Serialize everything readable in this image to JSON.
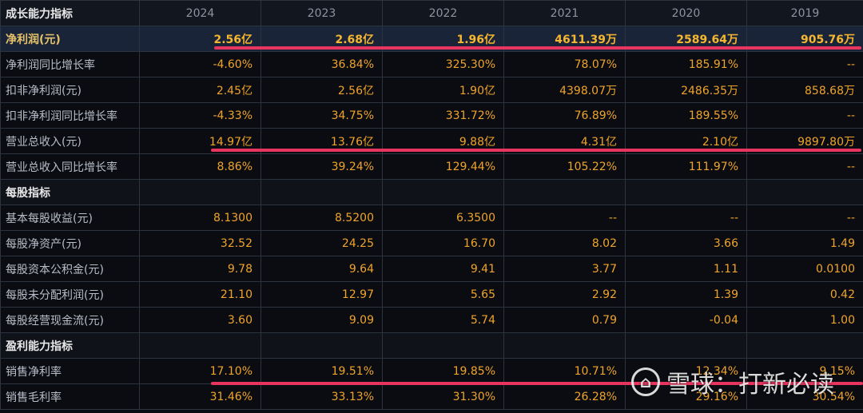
{
  "header": {
    "corner": "成长能力指标",
    "years": [
      "2024",
      "2023",
      "2022",
      "2021",
      "2020",
      "2019"
    ]
  },
  "rows": [
    {
      "label": "净利润(元)",
      "values": [
        "2.56亿",
        "2.68亿",
        "1.96亿",
        "4611.39万",
        "2589.64万",
        "905.76万"
      ]
    },
    {
      "label": "净利润同比增长率",
      "values": [
        "-4.60%",
        "36.84%",
        "325.30%",
        "78.07%",
        "185.91%",
        "--"
      ]
    },
    {
      "label": "扣非净利润(元)",
      "values": [
        "2.45亿",
        "2.56亿",
        "1.90亿",
        "4398.07万",
        "2486.35万",
        "858.68万"
      ]
    },
    {
      "label": "扣非净利润同比增长率",
      "values": [
        "-4.33%",
        "34.75%",
        "331.72%",
        "76.89%",
        "189.55%",
        "--"
      ]
    },
    {
      "label": "营业总收入(元)",
      "values": [
        "14.97亿",
        "13.76亿",
        "9.88亿",
        "4.31亿",
        "2.10亿",
        "9897.80万"
      ]
    },
    {
      "label": "营业总收入同比增长率",
      "values": [
        "8.86%",
        "39.24%",
        "129.44%",
        "105.22%",
        "111.97%",
        "--"
      ]
    },
    {
      "label": "每股指标",
      "values": [
        "",
        "",
        "",
        "",
        "",
        ""
      ]
    },
    {
      "label": "基本每股收益(元)",
      "values": [
        "8.1300",
        "8.5200",
        "6.3500",
        "--",
        "--",
        "--"
      ]
    },
    {
      "label": "每股净资产(元)",
      "values": [
        "32.52",
        "24.25",
        "16.70",
        "8.02",
        "3.66",
        "1.49"
      ]
    },
    {
      "label": "每股资本公积金(元)",
      "values": [
        "9.78",
        "9.64",
        "9.41",
        "3.77",
        "1.11",
        "0.0100"
      ]
    },
    {
      "label": "每股未分配利润(元)",
      "values": [
        "21.10",
        "12.97",
        "5.65",
        "2.92",
        "1.39",
        "0.42"
      ]
    },
    {
      "label": "每股经营现金流(元)",
      "values": [
        "3.60",
        "9.09",
        "5.74",
        "0.79",
        "-0.04",
        "1.00"
      ]
    },
    {
      "label": "盈利能力指标",
      "values": [
        "",
        "",
        "",
        "",
        "",
        ""
      ]
    },
    {
      "label": "销售净利率",
      "values": [
        "17.10%",
        "19.51%",
        "19.85%",
        "10.71%",
        "12.34%",
        "9.15%"
      ]
    },
    {
      "label": "销售毛利率",
      "values": [
        "31.46%",
        "33.13%",
        "31.30%",
        "26.28%",
        "29.16%",
        "30.54%"
      ]
    }
  ],
  "watermark": {
    "logo": "⌂",
    "text": "雪球：打新必读"
  },
  "colors": {
    "value": "#f0a42a",
    "highlight_underline": "#e8355f",
    "background": "#0a0c11"
  }
}
